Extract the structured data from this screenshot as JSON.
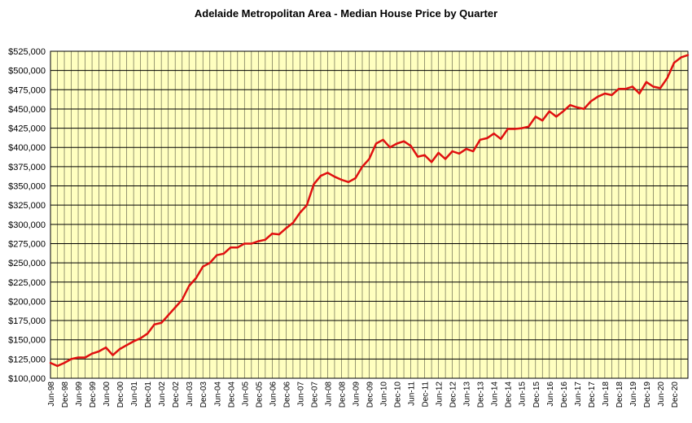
{
  "chart_data": {
    "type": "line",
    "title": "Adelaide Metropolitan Area - Median House Price by Quarter",
    "xlabel": "",
    "ylabel": "",
    "ylim": [
      100000,
      525000
    ],
    "y_ticks": [
      "$100,000",
      "$125,000",
      "$150,000",
      "$175,000",
      "$200,000",
      "$225,000",
      "$250,000",
      "$275,000",
      "$300,000",
      "$325,000",
      "$350,000",
      "$375,000",
      "$400,000",
      "$425,000",
      "$450,000",
      "$475,000",
      "$500,000",
      "$525,000"
    ],
    "x_ticks": [
      "Jun-98",
      "Dec-98",
      "Jun-99",
      "Dec-99",
      "Jun-00",
      "Dec-00",
      "Jun-01",
      "Dec-01",
      "Jun-02",
      "Dec-02",
      "Jun-03",
      "Dec-03",
      "Jun-04",
      "Dec-04",
      "Jun-05",
      "Dec-05",
      "Jun-06",
      "Dec-06",
      "Jun-07",
      "Dec-07",
      "Jun-08",
      "Dec-08",
      "Jun-09",
      "Dec-09",
      "Jun-10",
      "Dec-10",
      "Jun-11",
      "Dec-11",
      "Jun-12",
      "Dec-12",
      "Jun-13",
      "Dec-13",
      "Jun-14",
      "Dec-14",
      "Jun-15",
      "Dec-15",
      "Jun-16",
      "Dec-16",
      "Jun-17",
      "Dec-17",
      "Jun-18",
      "Dec-18",
      "Jun-19",
      "Dec-19",
      "Jun-20",
      "Dec-20"
    ],
    "grid": true,
    "colors": {
      "plot_background": "#ffffc0",
      "grid": "#000000",
      "line": "#e01010"
    },
    "series": [
      {
        "name": "",
        "x": [
          "Jun-98",
          "Sep-98",
          "Dec-98",
          "Mar-99",
          "Jun-99",
          "Sep-99",
          "Dec-99",
          "Mar-00",
          "Jun-00",
          "Sep-00",
          "Dec-00",
          "Mar-01",
          "Jun-01",
          "Sep-01",
          "Dec-01",
          "Mar-02",
          "Jun-02",
          "Sep-02",
          "Dec-02",
          "Mar-03",
          "Jun-03",
          "Sep-03",
          "Dec-03",
          "Mar-04",
          "Jun-04",
          "Sep-04",
          "Dec-04",
          "Mar-05",
          "Jun-05",
          "Sep-05",
          "Dec-05",
          "Mar-06",
          "Jun-06",
          "Sep-06",
          "Dec-06",
          "Mar-07",
          "Jun-07",
          "Sep-07",
          "Dec-07",
          "Mar-08",
          "Jun-08",
          "Sep-08",
          "Dec-08",
          "Mar-09",
          "Jun-09",
          "Sep-09",
          "Dec-09",
          "Mar-10",
          "Jun-10",
          "Sep-10",
          "Dec-10",
          "Mar-11",
          "Jun-11",
          "Sep-11",
          "Dec-11",
          "Mar-12",
          "Jun-12",
          "Sep-12",
          "Dec-12",
          "Mar-13",
          "Jun-13",
          "Sep-13",
          "Dec-13",
          "Mar-14",
          "Jun-14",
          "Sep-14",
          "Dec-14",
          "Mar-15",
          "Jun-15",
          "Sep-15",
          "Dec-15",
          "Mar-16",
          "Jun-16",
          "Sep-16",
          "Dec-16",
          "Mar-17",
          "Jun-17",
          "Sep-17",
          "Dec-17",
          "Mar-18",
          "Jun-18",
          "Sep-18",
          "Dec-18",
          "Mar-19",
          "Jun-19",
          "Sep-19",
          "Dec-19",
          "Mar-20",
          "Jun-20",
          "Sep-20",
          "Dec-20",
          "Mar-21",
          "Jun-21"
        ],
        "values": [
          120000,
          116000,
          120000,
          125000,
          127000,
          127000,
          132000,
          135000,
          140000,
          130000,
          138000,
          143000,
          148000,
          152000,
          158000,
          170000,
          172000,
          182000,
          192000,
          202000,
          220000,
          230000,
          245000,
          250000,
          260000,
          262000,
          270000,
          270000,
          275000,
          275000,
          278000,
          280000,
          288000,
          287000,
          295000,
          302000,
          315000,
          325000,
          352000,
          363000,
          367000,
          362000,
          358000,
          355000,
          360000,
          375000,
          385000,
          405000,
          410000,
          400000,
          405000,
          408000,
          402000,
          388000,
          390000,
          381000,
          393000,
          385000,
          395000,
          392000,
          398000,
          395000,
          410000,
          412000,
          418000,
          411000,
          424000,
          424000,
          425000,
          427000,
          440000,
          435000,
          447000,
          440000,
          447000,
          455000,
          452000,
          450000,
          460000,
          466000,
          470000,
          468000,
          476000,
          476000,
          479000,
          470000,
          485000,
          479000,
          477000,
          490000,
          510000,
          517000,
          520000
        ]
      }
    ]
  }
}
